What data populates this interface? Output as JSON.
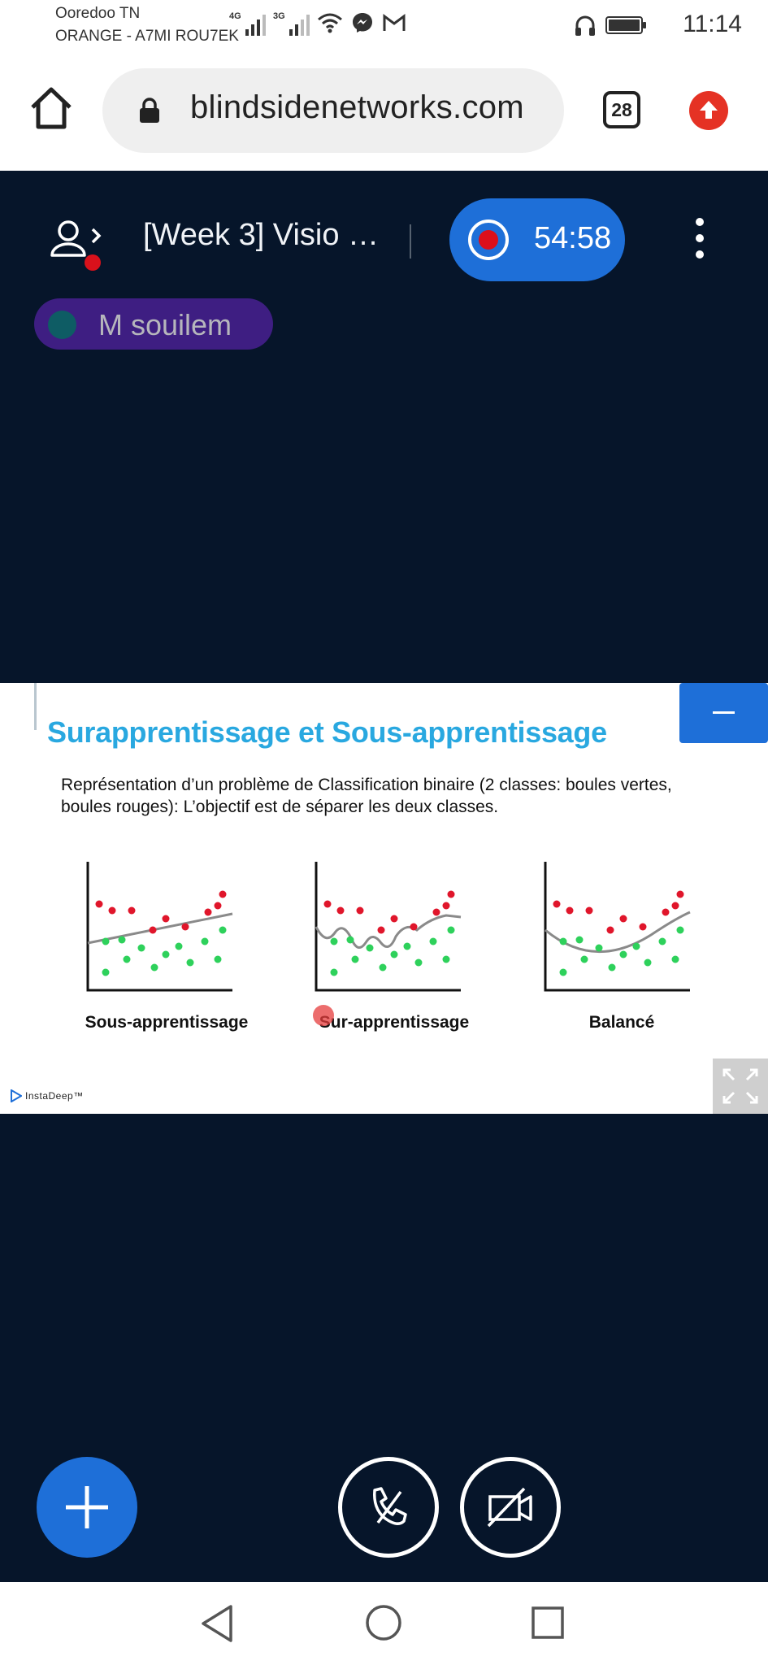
{
  "status_bar": {
    "carrier1": "Ooredoo TN",
    "carrier2": "ORANGE - A7MI ROU7EK",
    "net1": "4G",
    "net2": "3G",
    "time": "11:14",
    "icons": [
      "wifi-icon",
      "messenger-icon",
      "gmail-icon",
      "headphones-icon",
      "battery-icon"
    ]
  },
  "browser": {
    "url": "blindsidenetworks.com",
    "tab_count": "28",
    "icons": [
      "home-icon",
      "lock-icon",
      "upgrade-icon"
    ]
  },
  "meeting": {
    "title": "[Week 3] Visio …",
    "record_time": "54:58",
    "talker": "M souilem",
    "accent": "#1e6fd8",
    "background": "#06152a"
  },
  "slide": {
    "title": "Surapprentissage et Sous-apprentissage",
    "text": "Représentation d’un problème de Classification binaire (2 classes: boules vertes, boules rouges): L’objectif est de séparer les deux classes.",
    "logo": "InstaDeep™",
    "charts": [
      {
        "label": "Sous-apprentissage"
      },
      {
        "label": "Sur-apprentissage"
      },
      {
        "label": "Balancé"
      }
    ],
    "point_colors": {
      "red": "#e0162b",
      "green": "#2ed15b",
      "curve": "#8a8a8a"
    }
  },
  "controls": {
    "icons": [
      "plus-icon",
      "phone-icon",
      "camera-off-icon"
    ]
  },
  "nav": {
    "icons": [
      "back-icon",
      "home-circle-icon",
      "recents-icon"
    ]
  }
}
